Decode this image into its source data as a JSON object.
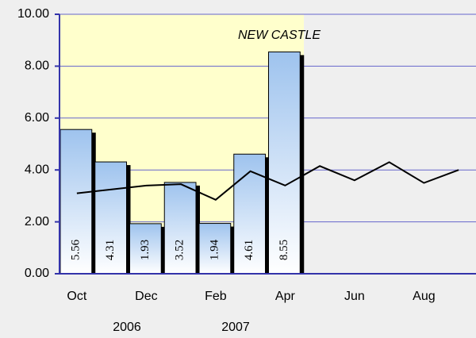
{
  "chart_data": {
    "type": "bar",
    "title": "NEW CASTLE",
    "categories": [
      "Oct",
      null,
      "Dec",
      null,
      "Feb",
      null,
      "Apr",
      null,
      "Jun",
      null,
      "Aug",
      null
    ],
    "year_labels": [
      "2006",
      "2007"
    ],
    "series": [
      {
        "type": "bar",
        "color": "#9ec3ee",
        "values": [
          5.56,
          4.31,
          1.93,
          3.52,
          1.94,
          4.61,
          8.55,
          null,
          null,
          null,
          null,
          null
        ]
      },
      {
        "type": "line",
        "color": "#000000",
        "values": [
          3.1,
          3.25,
          3.4,
          3.45,
          2.85,
          3.95,
          3.4,
          4.15,
          3.6,
          4.3,
          3.5,
          4.0
        ]
      }
    ],
    "ylim": [
      0,
      10
    ],
    "yticks": [
      {
        "value": 0,
        "label": "0.00"
      },
      {
        "value": 2,
        "label": "2.00"
      },
      {
        "value": 4,
        "label": "4.00"
      },
      {
        "value": 6,
        "label": "6.00"
      },
      {
        "value": 8,
        "label": "8.00"
      },
      {
        "value": 10,
        "label": "10.00"
      }
    ],
    "grid": true
  }
}
